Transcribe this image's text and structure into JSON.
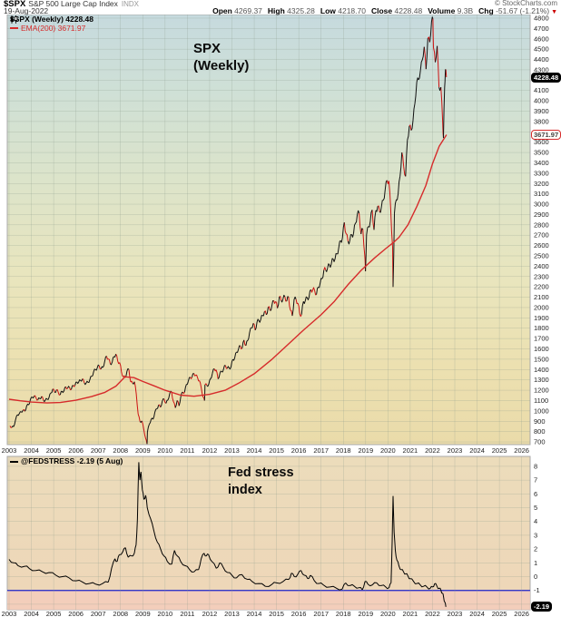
{
  "header": {
    "symbol": "$SPX",
    "name": "S&P 500 Large Cap Index",
    "exchange": "INDX",
    "date": "19-Aug-2022",
    "copyright": "© StockCharts.com",
    "quote": {
      "items": [
        {
          "label": "Open",
          "value": "4269.37"
        },
        {
          "label": "High",
          "value": "4325.28"
        },
        {
          "label": "Low",
          "value": "4218.70"
        },
        {
          "label": "Close",
          "value": "4228.48"
        },
        {
          "label": "Volume",
          "value": "9.3B"
        },
        {
          "label": "Chg",
          "value": "-51.67 (-1.21%)"
        }
      ],
      "change_direction_icon": "▼"
    }
  },
  "main_chart": {
    "legend_price": "$SPX (Weekly) 4228.48",
    "legend_ema": "EMA(200) 3671.97",
    "annotation": "SPX\n(Weekly)",
    "price_badge": "4228.48",
    "ema_badge": "3671.97",
    "last_price": 4228.48,
    "last_ema": 3671.97
  },
  "lower_chart": {
    "legend": "@FEDSTRESS -2.19 (5 Aug)",
    "annotation": "Fed stress\nindex",
    "badge": "-2.19",
    "last_value": -2.19
  },
  "chart_data": [
    {
      "type": "line",
      "title": "SPX (Weekly)",
      "xlabel": "",
      "ylabel": "",
      "x_ticks": [
        2003,
        2004,
        2005,
        2006,
        2007,
        2008,
        2009,
        2010,
        2011,
        2012,
        2013,
        2014,
        2015,
        2016,
        2017,
        2018,
        2019,
        2020,
        2021,
        2022,
        2023,
        2024,
        2025,
        2026
      ],
      "xlim": [
        2002.9,
        2026.4
      ],
      "ylim": [
        674,
        4835
      ],
      "y_label_min": 700,
      "y_label_max": 4800,
      "y_grid_step": 100,
      "grid": true,
      "legend_position": "top-left",
      "series": [
        {
          "name": "$SPX (Weekly)",
          "style": "price",
          "color_up": "#111111",
          "color_down": "#cc1111",
          "last": 4228.48,
          "monthly_start": 2003.042,
          "monthly_step": 0.083333,
          "monthly_values": [
            855,
            841,
            848,
            916,
            963,
            974,
            990,
            1008,
            996,
            1050,
            1058,
            1111,
            1131,
            1144,
            1126,
            1107,
            1120,
            1140,
            1101,
            1104,
            1114,
            1130,
            1173,
            1211,
            1181,
            1203,
            1180,
            1156,
            1191,
            1191,
            1234,
            1220,
            1228,
            1207,
            1249,
            1248,
            1280,
            1280,
            1294,
            1310,
            1270,
            1270,
            1276,
            1303,
            1335,
            1377,
            1400,
            1418,
            1438,
            1406,
            1420,
            1482,
            1530,
            1503,
            1455,
            1473,
            1526,
            1549,
            1481,
            1468,
            1378,
            1330,
            1322,
            1385,
            1400,
            1280,
            1267,
            1282,
            1166,
            968,
            896,
            903,
            825,
            735,
            797,
            872,
            919,
            919,
            987,
            1020,
            1057,
            1036,
            1095,
            1115,
            1073,
            1104,
            1169,
            1186,
            1089,
            1030,
            1101,
            1049,
            1141,
            1183,
            1180,
            1257,
            1286,
            1327,
            1325,
            1363,
            1345,
            1320,
            1292,
            1218,
            1131,
            1253,
            1246,
            1257,
            1312,
            1365,
            1408,
            1397,
            1310,
            1362,
            1379,
            1406,
            1440,
            1412,
            1416,
            1426,
            1498,
            1514,
            1569,
            1597,
            1630,
            1606,
            1685,
            1632,
            1681,
            1756,
            1805,
            1848,
            1782,
            1859,
            1872,
            1883,
            1923,
            1960,
            1930,
            2003,
            1972,
            2018,
            2067,
            2058,
            1994,
            2104,
            2067,
            2085,
            2107,
            2063,
            2103,
            1972,
            1920,
            2079,
            2080,
            2043,
            1940,
            1932,
            2059,
            2065,
            2096,
            2098,
            2173,
            2170,
            2168,
            2126,
            2198,
            2238,
            2278,
            2363,
            2362,
            2384,
            2411,
            2423,
            2470,
            2471,
            2519,
            2575,
            2647,
            2673,
            2823,
            2713,
            2640,
            2648,
            2705,
            2718,
            2816,
            2901,
            2913,
            2711,
            2760,
            2506,
            2704,
            2784,
            2834,
            2945,
            2752,
            2941,
            2980,
            2926,
            2976,
            3037,
            3140,
            3230,
            3225,
            2954,
            2584,
            2912,
            3044,
            3100,
            3271,
            3500,
            3363,
            3269,
            3621,
            3756,
            3714,
            3811,
            3972,
            4181,
            4204,
            4297,
            4395,
            4522,
            4307,
            4605,
            4567,
            4766,
            4515,
            4373,
            4530,
            4131,
            4132,
            3785,
            4130,
            4228.48
          ],
          "extra_points": [
            [
              2009.19,
              680
            ],
            [
              2011.77,
              1100
            ],
            [
              2018.99,
              2351
            ],
            [
              2020.23,
              2200
            ],
            [
              2022.02,
              4795
            ],
            [
              2022.49,
              3640
            ],
            [
              2022.58,
              4305
            ]
          ]
        },
        {
          "name": "EMA(200)",
          "style": "smooth",
          "color": "#d62b2b",
          "last": 3671.97,
          "points": [
            [
              2003.0,
              1113
            ],
            [
              2003.5,
              1098
            ],
            [
              2004.0,
              1086
            ],
            [
              2004.7,
              1077
            ],
            [
              2005.3,
              1081
            ],
            [
              2006.0,
              1103
            ],
            [
              2006.7,
              1138
            ],
            [
              2007.3,
              1180
            ],
            [
              2007.8,
              1240
            ],
            [
              2008.2,
              1330
            ],
            [
              2008.6,
              1322
            ],
            [
              2009.0,
              1285
            ],
            [
              2009.5,
              1243
            ],
            [
              2010.0,
              1200
            ],
            [
              2010.7,
              1152
            ],
            [
              2011.3,
              1142
            ],
            [
              2012.0,
              1160
            ],
            [
              2012.7,
              1200
            ],
            [
              2013.3,
              1268
            ],
            [
              2014.0,
              1360
            ],
            [
              2014.8,
              1500
            ],
            [
              2015.5,
              1640
            ],
            [
              2016.2,
              1780
            ],
            [
              2017.0,
              1930
            ],
            [
              2017.6,
              2060
            ],
            [
              2018.2,
              2220
            ],
            [
              2018.8,
              2360
            ],
            [
              2019.4,
              2480
            ],
            [
              2019.9,
              2570
            ],
            [
              2020.25,
              2630
            ],
            [
              2020.5,
              2680
            ],
            [
              2020.9,
              2800
            ],
            [
              2021.3,
              2980
            ],
            [
              2021.7,
              3180
            ],
            [
              2022.0,
              3390
            ],
            [
              2022.3,
              3560
            ],
            [
              2022.63,
              3671.97
            ]
          ]
        }
      ]
    },
    {
      "type": "line",
      "title": "Fed stress index",
      "xlabel": "",
      "ylabel": "",
      "x_ticks": [
        2003,
        2004,
        2005,
        2006,
        2007,
        2008,
        2009,
        2010,
        2011,
        2012,
        2013,
        2014,
        2015,
        2016,
        2017,
        2018,
        2019,
        2020,
        2021,
        2022,
        2023,
        2024,
        2025,
        2026
      ],
      "xlim": [
        2002.9,
        2026.4
      ],
      "ylim": [
        -2.4,
        8.72
      ],
      "y_label_min": -1,
      "y_label_max": 8,
      "y_grid_step": 1,
      "grid": true,
      "threshold": {
        "value": -1,
        "color": "#1f1fd6"
      },
      "series": [
        {
          "name": "@FEDSTRESS",
          "style": "indicator",
          "color": "#000000",
          "last": -2.19,
          "points": [
            [
              2003.0,
              1.25
            ],
            [
              2003.2,
              1.0
            ],
            [
              2003.4,
              0.8
            ],
            [
              2003.7,
              0.75
            ],
            [
              2003.9,
              0.6
            ],
            [
              2004.2,
              0.45
            ],
            [
              2004.5,
              0.35
            ],
            [
              2004.8,
              0.3
            ],
            [
              2005.1,
              0.1
            ],
            [
              2005.4,
              0.0
            ],
            [
              2005.7,
              -0.1
            ],
            [
              2006.0,
              -0.3
            ],
            [
              2006.3,
              -0.4
            ],
            [
              2006.6,
              -0.5
            ],
            [
              2006.9,
              -0.55
            ],
            [
              2007.2,
              -0.5
            ],
            [
              2007.45,
              -0.4
            ],
            [
              2007.6,
              0.6
            ],
            [
              2007.75,
              1.3
            ],
            [
              2007.85,
              1.1
            ],
            [
              2007.95,
              1.6
            ],
            [
              2008.1,
              1.8
            ],
            [
              2008.22,
              2.1
            ],
            [
              2008.35,
              1.4
            ],
            [
              2008.5,
              1.5
            ],
            [
              2008.62,
              1.7
            ],
            [
              2008.7,
              2.3
            ],
            [
              2008.76,
              4.2
            ],
            [
              2008.82,
              8.3
            ],
            [
              2008.87,
              7.0
            ],
            [
              2008.92,
              7.6
            ],
            [
              2008.98,
              6.3
            ],
            [
              2009.05,
              5.6
            ],
            [
              2009.13,
              5.9
            ],
            [
              2009.2,
              5.0
            ],
            [
              2009.35,
              4.2
            ],
            [
              2009.5,
              3.3
            ],
            [
              2009.65,
              2.5
            ],
            [
              2009.8,
              2.0
            ],
            [
              2009.95,
              1.5
            ],
            [
              2010.1,
              1.1
            ],
            [
              2010.3,
              0.9
            ],
            [
              2010.42,
              1.9
            ],
            [
              2010.55,
              1.5
            ],
            [
              2010.7,
              1.1
            ],
            [
              2010.9,
              0.8
            ],
            [
              2011.1,
              0.5
            ],
            [
              2011.3,
              0.35
            ],
            [
              2011.5,
              0.5
            ],
            [
              2011.62,
              1.3
            ],
            [
              2011.75,
              1.7
            ],
            [
              2011.85,
              1.5
            ],
            [
              2011.95,
              1.6
            ],
            [
              2012.1,
              1.1
            ],
            [
              2012.3,
              0.6
            ],
            [
              2012.45,
              1.0
            ],
            [
              2012.6,
              0.7
            ],
            [
              2012.8,
              0.3
            ],
            [
              2013.0,
              0.1
            ],
            [
              2013.2,
              -0.1
            ],
            [
              2013.45,
              0.15
            ],
            [
              2013.7,
              -0.2
            ],
            [
              2013.9,
              -0.35
            ],
            [
              2014.2,
              -0.5
            ],
            [
              2014.5,
              -0.7
            ],
            [
              2014.8,
              -0.55
            ],
            [
              2015.0,
              -0.45
            ],
            [
              2015.3,
              -0.35
            ],
            [
              2015.55,
              -0.2
            ],
            [
              2015.67,
              0.25
            ],
            [
              2015.8,
              0.0
            ],
            [
              2015.95,
              0.15
            ],
            [
              2016.1,
              0.45
            ],
            [
              2016.25,
              0.1
            ],
            [
              2016.4,
              -0.15
            ],
            [
              2016.52,
              0.1
            ],
            [
              2016.7,
              -0.3
            ],
            [
              2016.9,
              -0.5
            ],
            [
              2017.1,
              -0.6
            ],
            [
              2017.4,
              -0.75
            ],
            [
              2017.7,
              -0.85
            ],
            [
              2017.95,
              -0.9
            ],
            [
              2018.1,
              -0.45
            ],
            [
              2018.3,
              -0.65
            ],
            [
              2018.5,
              -0.7
            ],
            [
              2018.7,
              -0.8
            ],
            [
              2018.85,
              -0.95
            ],
            [
              2018.97,
              -0.35
            ],
            [
              2019.1,
              -0.55
            ],
            [
              2019.3,
              -0.6
            ],
            [
              2019.5,
              -0.45
            ],
            [
              2019.7,
              -0.65
            ],
            [
              2019.9,
              -0.75
            ],
            [
              2020.05,
              -0.8
            ],
            [
              2020.14,
              -0.45
            ],
            [
              2020.19,
              2.5
            ],
            [
              2020.23,
              5.85
            ],
            [
              2020.28,
              3.2
            ],
            [
              2020.33,
              1.9
            ],
            [
              2020.4,
              1.2
            ],
            [
              2020.5,
              0.75
            ],
            [
              2020.6,
              0.5
            ],
            [
              2020.7,
              0.35
            ],
            [
              2020.8,
              0.2
            ],
            [
              2020.9,
              0.05
            ],
            [
              2021.0,
              -0.15
            ],
            [
              2021.15,
              -0.35
            ],
            [
              2021.3,
              -0.5
            ],
            [
              2021.45,
              -0.6
            ],
            [
              2021.6,
              -0.7
            ],
            [
              2021.75,
              -0.75
            ],
            [
              2021.9,
              -0.85
            ],
            [
              2022.0,
              -0.75
            ],
            [
              2022.1,
              -0.5
            ],
            [
              2022.2,
              -0.7
            ],
            [
              2022.3,
              -0.85
            ],
            [
              2022.38,
              -1.0
            ],
            [
              2022.45,
              -1.2
            ],
            [
              2022.5,
              -1.5
            ],
            [
              2022.55,
              -1.85
            ],
            [
              2022.6,
              -2.19
            ]
          ]
        }
      ]
    }
  ]
}
